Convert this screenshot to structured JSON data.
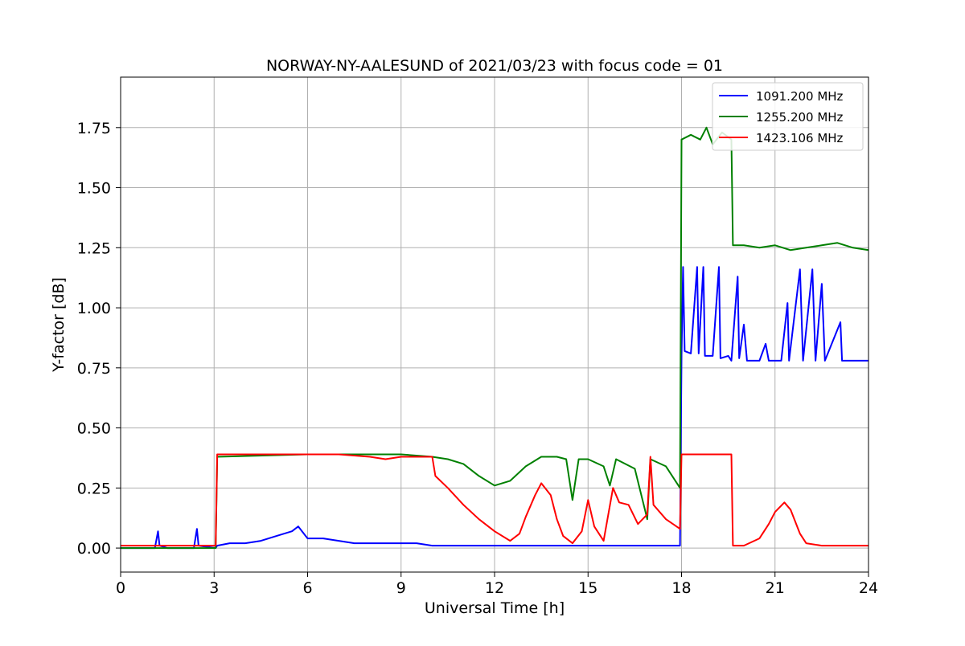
{
  "chart_data": {
    "type": "line",
    "title": "NORWAY-NY-AALESUND of 2021/03/23 with focus code = 01",
    "xlabel": "Universal Time [h]",
    "ylabel": "Y-factor [dB]",
    "xlim": [
      0,
      24
    ],
    "ylim": [
      -0.1,
      1.96
    ],
    "xticks": [
      0,
      3,
      6,
      9,
      12,
      15,
      18,
      21,
      24
    ],
    "xtick_labels": [
      "0",
      "3",
      "6",
      "9",
      "12",
      "15",
      "18",
      "21",
      "24"
    ],
    "yticks": [
      0.0,
      0.25,
      0.5,
      0.75,
      1.0,
      1.25,
      1.5,
      1.75
    ],
    "ytick_labels": [
      "0.00",
      "0.25",
      "0.50",
      "0.75",
      "1.00",
      "1.25",
      "1.50",
      "1.75"
    ],
    "grid": true,
    "legend_position": "top-right",
    "series": [
      {
        "name": "1091.200 MHz",
        "color": "#0000ff",
        "points": [
          [
            0.0,
            0.0
          ],
          [
            1.1,
            0.0
          ],
          [
            1.2,
            0.07
          ],
          [
            1.25,
            0.01
          ],
          [
            1.5,
            0.0
          ],
          [
            2.35,
            0.0
          ],
          [
            2.45,
            0.08
          ],
          [
            2.5,
            0.01
          ],
          [
            3.05,
            0.0
          ],
          [
            3.1,
            0.01
          ],
          [
            3.5,
            0.02
          ],
          [
            4.0,
            0.02
          ],
          [
            4.5,
            0.03
          ],
          [
            5.0,
            0.05
          ],
          [
            5.5,
            0.07
          ],
          [
            5.7,
            0.09
          ],
          [
            6.0,
            0.04
          ],
          [
            6.5,
            0.04
          ],
          [
            7.0,
            0.03
          ],
          [
            7.5,
            0.02
          ],
          [
            8.0,
            0.02
          ],
          [
            8.5,
            0.02
          ],
          [
            9.0,
            0.02
          ],
          [
            9.5,
            0.02
          ],
          [
            10.0,
            0.01
          ],
          [
            10.5,
            0.01
          ],
          [
            11.0,
            0.01
          ],
          [
            11.5,
            0.01
          ],
          [
            12.0,
            0.01
          ],
          [
            13.0,
            0.01
          ],
          [
            14.0,
            0.01
          ],
          [
            15.0,
            0.01
          ],
          [
            16.0,
            0.01
          ],
          [
            17.0,
            0.01
          ],
          [
            17.95,
            0.01
          ],
          [
            18.0,
            0.8
          ],
          [
            18.05,
            1.17
          ],
          [
            18.1,
            0.82
          ],
          [
            18.3,
            0.81
          ],
          [
            18.5,
            1.17
          ],
          [
            18.55,
            0.81
          ],
          [
            18.7,
            1.17
          ],
          [
            18.75,
            0.8
          ],
          [
            19.0,
            0.8
          ],
          [
            19.2,
            1.17
          ],
          [
            19.25,
            0.79
          ],
          [
            19.5,
            0.8
          ],
          [
            19.6,
            0.78
          ],
          [
            19.8,
            1.13
          ],
          [
            19.85,
            0.79
          ],
          [
            20.0,
            0.93
          ],
          [
            20.1,
            0.78
          ],
          [
            20.5,
            0.78
          ],
          [
            20.7,
            0.85
          ],
          [
            20.8,
            0.78
          ],
          [
            21.2,
            0.78
          ],
          [
            21.4,
            1.02
          ],
          [
            21.45,
            0.78
          ],
          [
            21.8,
            1.16
          ],
          [
            21.9,
            0.78
          ],
          [
            22.2,
            1.16
          ],
          [
            22.3,
            0.78
          ],
          [
            22.5,
            1.1
          ],
          [
            22.6,
            0.78
          ],
          [
            23.1,
            0.94
          ],
          [
            23.15,
            0.78
          ],
          [
            24.0,
            0.78
          ]
        ]
      },
      {
        "name": "1255.200 MHz",
        "color": "#008000",
        "points": [
          [
            0.0,
            0.0
          ],
          [
            3.05,
            0.0
          ],
          [
            3.1,
            0.38
          ],
          [
            6.0,
            0.39
          ],
          [
            9.0,
            0.39
          ],
          [
            10.0,
            0.38
          ],
          [
            10.5,
            0.37
          ],
          [
            11.0,
            0.35
          ],
          [
            11.5,
            0.3
          ],
          [
            12.0,
            0.26
          ],
          [
            12.5,
            0.28
          ],
          [
            13.0,
            0.34
          ],
          [
            13.5,
            0.38
          ],
          [
            14.0,
            0.38
          ],
          [
            14.3,
            0.37
          ],
          [
            14.5,
            0.2
          ],
          [
            14.7,
            0.37
          ],
          [
            15.0,
            0.37
          ],
          [
            15.5,
            0.34
          ],
          [
            15.7,
            0.26
          ],
          [
            15.9,
            0.37
          ],
          [
            16.5,
            0.33
          ],
          [
            16.9,
            0.12
          ],
          [
            17.0,
            0.37
          ],
          [
            17.5,
            0.34
          ],
          [
            17.95,
            0.25
          ],
          [
            18.0,
            1.7
          ],
          [
            18.3,
            1.72
          ],
          [
            18.6,
            1.7
          ],
          [
            18.8,
            1.75
          ],
          [
            19.0,
            1.68
          ],
          [
            19.3,
            1.73
          ],
          [
            19.6,
            1.7
          ],
          [
            19.65,
            1.26
          ],
          [
            20.0,
            1.26
          ],
          [
            20.5,
            1.25
          ],
          [
            21.0,
            1.26
          ],
          [
            21.5,
            1.24
          ],
          [
            22.0,
            1.25
          ],
          [
            22.5,
            1.26
          ],
          [
            23.0,
            1.27
          ],
          [
            23.5,
            1.25
          ],
          [
            24.0,
            1.24
          ]
        ]
      },
      {
        "name": "1423.106 MHz",
        "color": "#ff0000",
        "points": [
          [
            0.0,
            0.01
          ],
          [
            3.05,
            0.01
          ],
          [
            3.1,
            0.39
          ],
          [
            6.0,
            0.39
          ],
          [
            7.0,
            0.39
          ],
          [
            8.0,
            0.38
          ],
          [
            8.5,
            0.37
          ],
          [
            9.0,
            0.38
          ],
          [
            10.0,
            0.38
          ],
          [
            10.1,
            0.3
          ],
          [
            10.5,
            0.25
          ],
          [
            11.0,
            0.18
          ],
          [
            11.5,
            0.12
          ],
          [
            12.0,
            0.07
          ],
          [
            12.5,
            0.03
          ],
          [
            12.8,
            0.06
          ],
          [
            13.0,
            0.13
          ],
          [
            13.3,
            0.22
          ],
          [
            13.5,
            0.27
          ],
          [
            13.8,
            0.22
          ],
          [
            14.0,
            0.12
          ],
          [
            14.2,
            0.05
          ],
          [
            14.5,
            0.02
          ],
          [
            14.8,
            0.07
          ],
          [
            15.0,
            0.2
          ],
          [
            15.2,
            0.09
          ],
          [
            15.5,
            0.03
          ],
          [
            15.8,
            0.25
          ],
          [
            16.0,
            0.19
          ],
          [
            16.3,
            0.18
          ],
          [
            16.6,
            0.1
          ],
          [
            16.9,
            0.14
          ],
          [
            17.0,
            0.38
          ],
          [
            17.1,
            0.18
          ],
          [
            17.5,
            0.12
          ],
          [
            17.95,
            0.08
          ],
          [
            18.0,
            0.39
          ],
          [
            19.6,
            0.39
          ],
          [
            19.65,
            0.01
          ],
          [
            20.0,
            0.01
          ],
          [
            20.5,
            0.04
          ],
          [
            20.8,
            0.1
          ],
          [
            21.0,
            0.15
          ],
          [
            21.3,
            0.19
          ],
          [
            21.5,
            0.16
          ],
          [
            21.8,
            0.06
          ],
          [
            22.0,
            0.02
          ],
          [
            22.5,
            0.01
          ],
          [
            23.0,
            0.01
          ],
          [
            24.0,
            0.01
          ]
        ]
      }
    ]
  }
}
